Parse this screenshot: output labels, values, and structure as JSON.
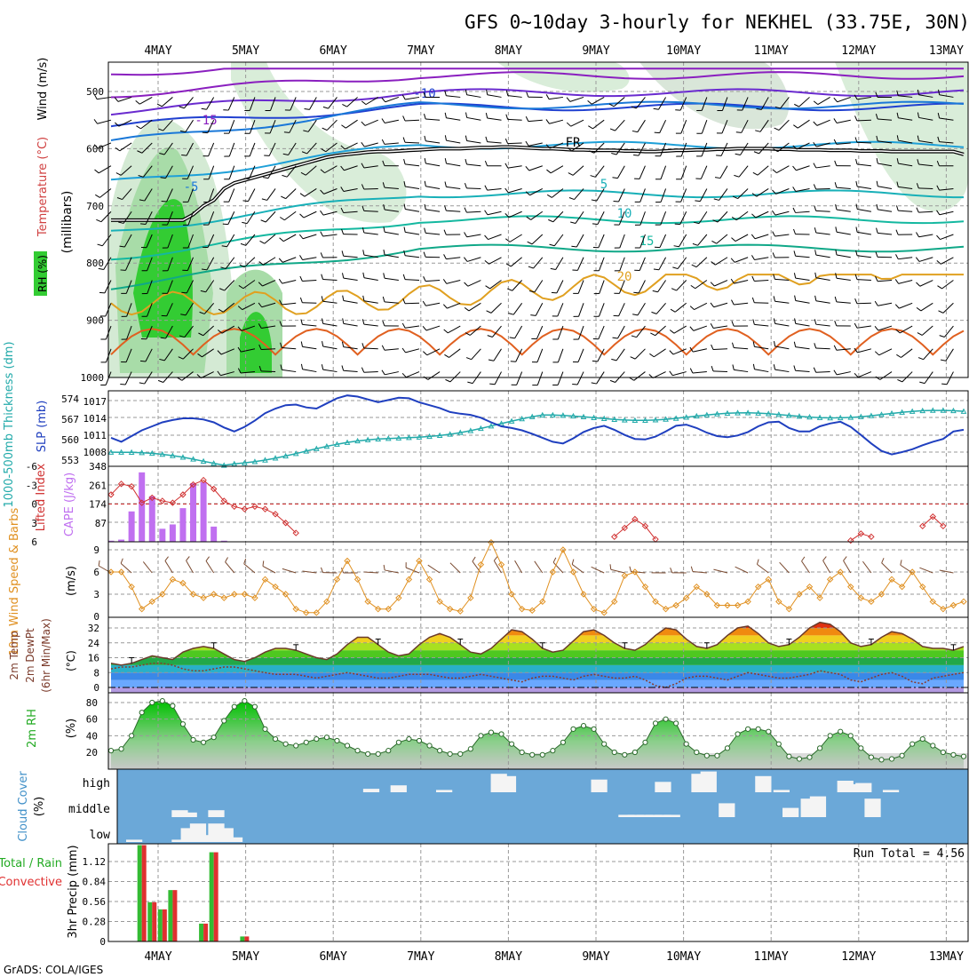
{
  "title": "GFS 0~10day 3-hourly for NEKHEL (33.75E, 30N)",
  "footer": "GrADS: COLA/IGES",
  "chart_data": {
    "type": "line",
    "x_dates": [
      "4MAY",
      "5MAY",
      "6MAY",
      "7MAY",
      "8MAY",
      "9MAY",
      "10MAY",
      "11MAY",
      "12MAY",
      "13MAY"
    ],
    "panels": {
      "upper_air": {
        "ylabel_parts": [
          "RH (%)",
          "Temperature (°C)",
          "Wind (m/s)",
          "(millibars)"
        ],
        "y_ticks": [
          "500",
          "600",
          "700",
          "800",
          "900",
          "1000"
        ],
        "contour_labels": [
          "-10",
          "-15",
          "-5",
          "FR",
          "5",
          "10",
          "15",
          "20"
        ],
        "freezing_level_mb": [
          725,
          725,
          725,
          725,
          725,
          725,
          725,
          725,
          715,
          700,
          690,
          670,
          660,
          655,
          650,
          645,
          640,
          635,
          630,
          625,
          620,
          615,
          612,
          610,
          608,
          606,
          605,
          605,
          604,
          603,
          602,
          601,
          600,
          600,
          600,
          599,
          598,
          598,
          597,
          597,
          598,
          599,
          600,
          600,
          601,
          602,
          602,
          603,
          603,
          603,
          604,
          604,
          605,
          605,
          604,
          603,
          603,
          602,
          602,
          601,
          601,
          600,
          600,
          600,
          600,
          601,
          601,
          602,
          602,
          602,
          603,
          603,
          603,
          604,
          604,
          604,
          605,
          605,
          605,
          605,
          605,
          605,
          605,
          610
        ]
      },
      "sea_level": {
        "ylabel_left": "1000-500mb Thickness (dm)",
        "ylabel_right": "SLP (mb)",
        "left_ticks": [
          "553",
          "560",
          "567",
          "574"
        ],
        "right_ticks": [
          "1008",
          "1011",
          "1014",
          "1017"
        ],
        "slp_mb": [
          1010.5,
          1009.8,
          1010.8,
          1011.8,
          1012.5,
          1013.2,
          1013.6,
          1013.9,
          1013.9,
          1013.7,
          1013.2,
          1012.3,
          1011.6,
          1012.4,
          1013.5,
          1014.8,
          1015.6,
          1016.2,
          1016.3,
          1015.8,
          1015.6,
          1016.5,
          1017.4,
          1017.9,
          1017.7,
          1017.2,
          1016.7,
          1017.1,
          1017.5,
          1017.4,
          1016.7,
          1016.2,
          1015.7,
          1015.0,
          1014.7,
          1014.5,
          1014.0,
          1013.2,
          1012.5,
          1012.2,
          1011.8,
          1011.2,
          1010.5,
          1009.8,
          1009.5,
          1010.4,
          1011.5,
          1012.2,
          1012.6,
          1011.9,
          1011.0,
          1010.3,
          1010.2,
          1010.7,
          1011.6,
          1012.6,
          1012.8,
          1012.2,
          1011.4,
          1010.8,
          1010.6,
          1010.9,
          1011.5,
          1012.5,
          1013.2,
          1013.3,
          1012.2,
          1011.6,
          1011.6,
          1012.5,
          1013.0,
          1013.3,
          1012.4,
          1011.0,
          1009.5,
          1008.2,
          1007.6,
          1008.0,
          1008.5,
          1009.2,
          1009.8,
          1010.3,
          1011.6,
          1011.9
        ]
      },
      "instability": {
        "ylabel_left": "Lifted Index",
        "ylabel_right": "CAPE (J/kg)",
        "left_ticks": [
          "6",
          "3",
          "0",
          "-3",
          "-6"
        ],
        "right_ticks": [
          "87",
          "174",
          "261",
          "348"
        ],
        "cape_jkg": [
          5,
          10,
          140,
          320,
          210,
          60,
          80,
          155,
          270,
          275,
          70,
          5,
          0,
          0,
          0,
          0,
          0,
          0,
          0,
          0,
          0,
          0,
          0,
          0,
          0,
          0,
          0,
          0,
          0,
          0,
          0,
          0,
          0,
          0,
          0,
          0,
          0,
          0,
          0,
          0,
          0,
          0,
          0,
          0,
          0,
          0,
          0,
          0,
          0,
          0,
          0,
          0,
          0,
          0,
          0,
          0,
          0,
          0,
          0,
          0,
          0,
          0,
          0,
          0,
          0,
          0,
          0,
          0,
          0,
          0,
          0,
          0,
          0,
          0,
          0,
          0,
          0,
          0,
          0,
          0,
          0,
          0,
          0,
          0
        ],
        "lifted_index_shown": [
          -1.5,
          -3.2,
          -2.8,
          -0.2,
          -1.0,
          -0.5,
          -0.2,
          -1.5,
          -3.1,
          -3.8,
          -2.4,
          -0.5,
          0.4,
          0.8,
          0.4,
          0.8,
          1.6,
          3.0,
          4.6,
          null,
          null,
          null,
          null,
          null,
          null,
          null,
          null,
          null,
          null,
          null,
          null,
          null,
          null,
          null,
          null,
          null,
          null,
          null,
          null,
          null,
          null,
          null,
          null,
          null,
          null,
          null,
          null,
          null,
          null,
          5.2,
          3.8,
          2.4,
          3.5,
          5.6,
          null,
          null,
          null,
          null,
          null,
          null,
          null,
          null,
          null,
          null,
          null,
          null,
          null,
          null,
          null,
          null,
          null,
          null,
          5.8,
          4.7,
          5.2,
          null,
          null,
          null,
          null,
          3.5,
          2.0,
          3.5,
          null,
          null
        ]
      },
      "wind10m": {
        "ylabel_left": "10m Wind Speed & Barbs",
        "ylabel_right": "(m/s)",
        "y_ticks": [
          "0",
          "3",
          "6",
          "9"
        ],
        "speed_ms": [
          6.0,
          6.0,
          4.0,
          1.0,
          2.0,
          3.0,
          5.0,
          4.5,
          3.0,
          2.5,
          3.0,
          2.5,
          3.0,
          3.0,
          2.5,
          5.0,
          4.0,
          3.0,
          1.0,
          0.5,
          0.5,
          2.0,
          5.0,
          7.5,
          5.0,
          2.0,
          1.0,
          1.0,
          2.5,
          5.0,
          7.5,
          5.0,
          2.0,
          1.0,
          0.7,
          2.5,
          7.0,
          10.0,
          7.0,
          3.0,
          1.0,
          0.8,
          2.0,
          6.0,
          9.0,
          6.0,
          3.0,
          1.0,
          0.5,
          2.0,
          5.5,
          6.0,
          4.0,
          2.0,
          1.0,
          1.5,
          2.5,
          4.0,
          3.0,
          1.5,
          1.5,
          1.5,
          2.0,
          4.0,
          5.0,
          2.0,
          1.0,
          3.0,
          4.0,
          2.5,
          5.0,
          6.0,
          4.0,
          2.5,
          2.0,
          3.0,
          5.0,
          4.0,
          6.0,
          4.0,
          2.0,
          1.0,
          1.5,
          2.0
        ]
      },
      "temperature": {
        "ylabel_parts": [
          "2m Temp",
          "2m DewPt",
          "(6hr Min/Max)",
          "(°C)"
        ],
        "y_ticks": [
          "0",
          "8",
          "16",
          "24",
          "32"
        ],
        "temp_c": [
          13,
          12,
          13,
          15,
          17,
          16,
          15,
          19,
          21,
          22,
          21,
          18,
          15,
          14,
          16,
          19,
          21,
          21,
          20,
          18,
          16,
          15,
          18,
          23,
          27,
          27,
          23,
          19,
          17,
          18,
          23,
          27,
          29,
          27,
          23,
          19,
          18,
          21,
          26,
          31,
          30,
          26,
          21,
          19,
          20,
          25,
          30,
          31,
          28,
          24,
          21,
          20,
          23,
          28,
          32,
          31,
          26,
          22,
          21,
          23,
          28,
          32,
          33,
          29,
          24,
          22,
          23,
          27,
          32,
          35,
          34,
          30,
          24,
          22,
          23,
          27,
          30,
          29,
          26,
          22,
          21,
          21,
          20,
          22
        ],
        "dewpt_c": [
          10,
          11,
          11,
          12,
          13,
          13,
          12,
          10,
          9,
          9,
          10,
          11,
          11,
          10,
          9,
          8,
          7,
          7,
          7,
          6,
          5,
          6,
          7,
          8,
          7,
          6,
          5,
          5,
          6,
          7,
          7,
          7,
          6,
          5,
          5,
          6,
          7,
          6,
          5,
          4,
          3,
          5,
          6,
          6,
          5,
          4,
          6,
          7,
          6,
          5,
          5,
          6,
          4,
          1,
          0,
          2,
          5,
          6,
          6,
          5,
          4,
          6,
          8,
          7,
          6,
          5,
          5,
          6,
          7,
          9,
          8,
          7,
          4,
          3,
          5,
          7,
          8,
          6,
          3,
          2,
          5,
          6,
          7,
          8
        ]
      },
      "rh2m": {
        "ylabel_left": "2m RH",
        "ylabel_right": "(%)",
        "y_ticks": [
          "20",
          "40",
          "60",
          "80"
        ],
        "rh_pct": [
          22,
          24,
          40,
          68,
          80,
          82,
          76,
          54,
          35,
          32,
          38,
          58,
          75,
          82,
          75,
          48,
          36,
          30,
          28,
          32,
          36,
          38,
          34,
          28,
          22,
          18,
          18,
          22,
          32,
          36,
          34,
          28,
          22,
          18,
          18,
          24,
          40,
          44,
          42,
          30,
          20,
          17,
          17,
          22,
          32,
          48,
          52,
          48,
          30,
          20,
          17,
          20,
          32,
          55,
          60,
          55,
          30,
          20,
          16,
          16,
          25,
          42,
          48,
          48,
          45,
          30,
          15,
          12,
          14,
          25,
          40,
          45,
          40,
          25,
          14,
          11,
          12,
          16,
          30,
          36,
          28,
          20,
          17,
          15
        ]
      },
      "clouds": {
        "ylabel_left": "Cloud Cover",
        "ylabel_right": "(%)",
        "levels": [
          "high",
          "middle",
          "low"
        ],
        "high_pct": [
          0,
          0,
          0,
          0,
          0,
          0,
          0,
          0,
          0,
          0,
          0,
          0,
          0,
          0,
          0,
          0,
          0,
          0,
          0,
          0,
          0,
          0,
          0,
          0,
          0,
          0,
          15,
          0,
          0,
          30,
          0,
          0,
          0,
          0,
          10,
          0,
          0,
          0,
          0,
          0,
          80,
          70,
          0,
          0,
          0,
          0,
          0,
          0,
          0,
          0,
          0,
          55,
          0,
          0,
          0,
          0,
          0,
          0,
          45,
          0,
          0,
          0,
          80,
          90,
          0,
          0,
          0,
          0,
          0,
          70,
          0,
          10,
          0,
          0,
          0,
          0,
          0,
          0,
          50,
          35,
          40,
          0,
          0,
          10
        ],
        "middle_pct": [
          0,
          0,
          0,
          0,
          0,
          30,
          20,
          0,
          0,
          30,
          0,
          0,
          0,
          0,
          0,
          0,
          0,
          0,
          0,
          0,
          0,
          0,
          0,
          0,
          0,
          0,
          0,
          0,
          0,
          0,
          0,
          0,
          0,
          0,
          0,
          0,
          0,
          0,
          0,
          0,
          0,
          0,
          0,
          0,
          0,
          0,
          0,
          0,
          0,
          0,
          0,
          0,
          0,
          0,
          10,
          10,
          10,
          10,
          10,
          10,
          0,
          0,
          0,
          0,
          0,
          60,
          0,
          0,
          0,
          0,
          0,
          0,
          40,
          0,
          80,
          90,
          0,
          0,
          0,
          0,
          0,
          80,
          0,
          0
        ],
        "low_pct": [
          10,
          0,
          0,
          0,
          0,
          10,
          60,
          80,
          30,
          80,
          60,
          20,
          0,
          0,
          0,
          0,
          0,
          0,
          0,
          0,
          0,
          0,
          0,
          0,
          0,
          0,
          0,
          0,
          0,
          0,
          0,
          0,
          0,
          0,
          0,
          0,
          0,
          0,
          0,
          0,
          0,
          0,
          0,
          0,
          0,
          0,
          0,
          0,
          0,
          0,
          0,
          0,
          0,
          0,
          0,
          0,
          0,
          0,
          0,
          0,
          0,
          0,
          0,
          0,
          0,
          0,
          0,
          0,
          0,
          0,
          0,
          0,
          0,
          0,
          0,
          0,
          0,
          0,
          0,
          0,
          0,
          0,
          0,
          0
        ]
      },
      "precip": {
        "ylabel_left": "Total / Rain",
        "ylabel_left2": "Convective",
        "ylabel_right": "3hr Precip (mm)",
        "y_ticks": [
          "0",
          "0.28",
          "0.56",
          "0.84",
          "1.12"
        ],
        "run_total": "Run Total = 4.56",
        "total_mm": [
          0,
          0,
          0,
          1.35,
          0.55,
          0.45,
          0.72,
          0,
          0,
          0.25,
          1.25,
          0,
          0,
          0.07,
          0,
          0,
          0,
          0,
          0,
          0,
          0,
          0,
          0,
          0,
          0,
          0,
          0,
          0,
          0,
          0,
          0,
          0,
          0,
          0,
          0,
          0,
          0,
          0,
          0,
          0,
          0,
          0,
          0,
          0,
          0,
          0,
          0,
          0,
          0,
          0,
          0,
          0,
          0,
          0,
          0,
          0,
          0,
          0,
          0,
          0,
          0,
          0,
          0,
          0,
          0,
          0,
          0,
          0,
          0,
          0,
          0,
          0,
          0,
          0,
          0,
          0,
          0,
          0,
          0,
          0,
          0,
          0,
          0,
          0
        ],
        "convective_mm": [
          0,
          0,
          0,
          1.35,
          0.55,
          0.45,
          0.72,
          0,
          0,
          0.25,
          1.25,
          0,
          0,
          0.07,
          0,
          0,
          0,
          0,
          0,
          0,
          0,
          0,
          0,
          0,
          0,
          0,
          0,
          0,
          0,
          0,
          0,
          0,
          0,
          0,
          0,
          0,
          0,
          0,
          0,
          0,
          0,
          0,
          0,
          0,
          0,
          0,
          0,
          0,
          0,
          0,
          0,
          0,
          0,
          0,
          0,
          0,
          0,
          0,
          0,
          0,
          0,
          0,
          0,
          0,
          0,
          0,
          0,
          0,
          0,
          0,
          0,
          0,
          0,
          0,
          0,
          0,
          0,
          0,
          0,
          0,
          0,
          0,
          0,
          0
        ]
      }
    }
  },
  "colors": {
    "rh_green": "#33cc33",
    "rh_light": "#cfe8cf",
    "slp": "#1f3fbf",
    "thickness": "#22aaaa",
    "cape": "#c070f0",
    "lifted_index": "#d03030",
    "wind": "#e09020",
    "freezing": "#000000"
  }
}
